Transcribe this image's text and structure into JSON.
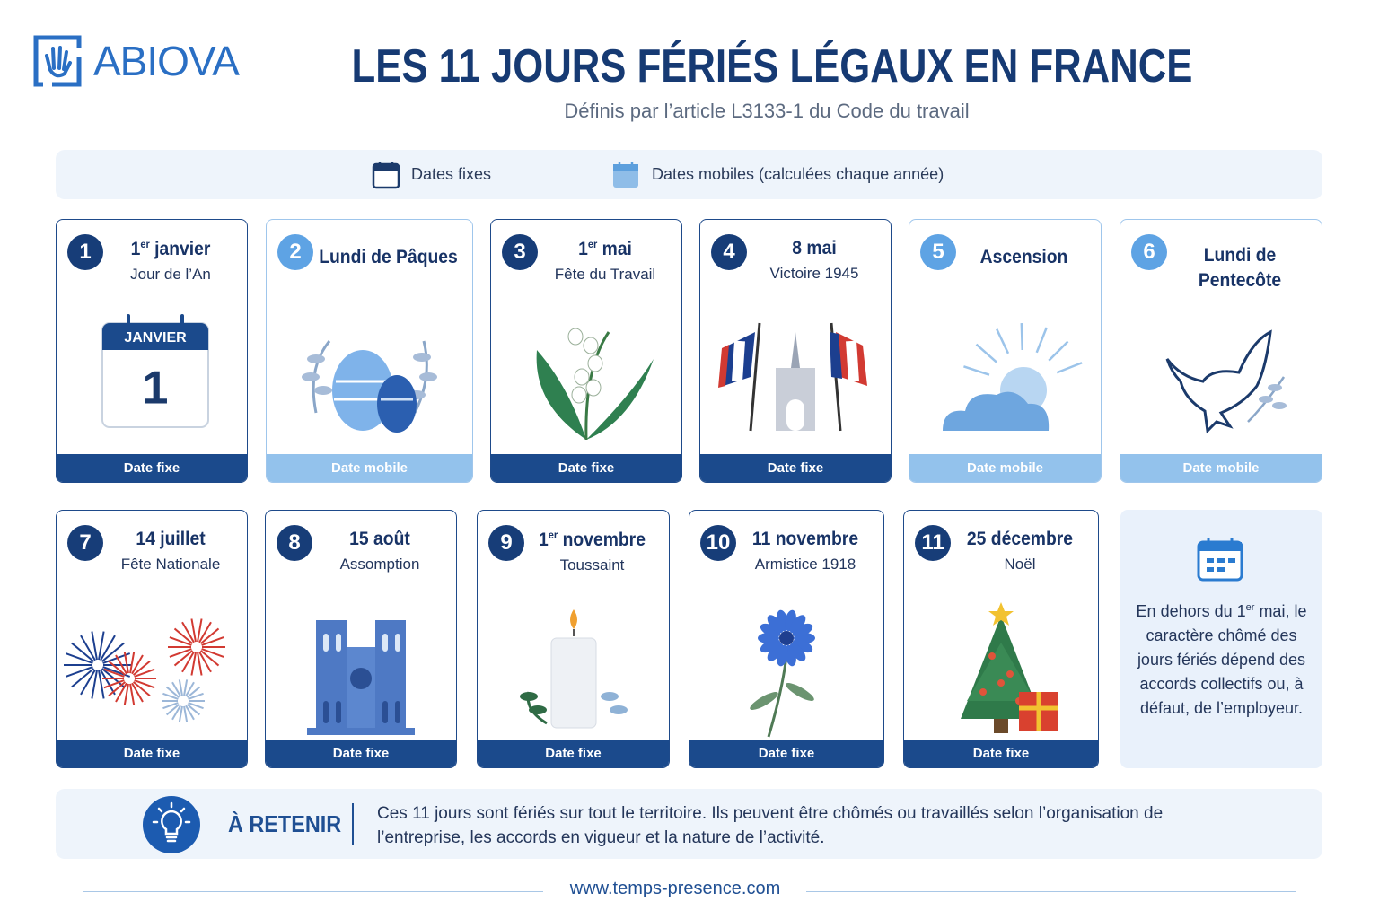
{
  "header": {
    "logo": "ABIOVA",
    "title": "LES 11 JOURS FÉRIÉS LÉGAUX EN FRANCE",
    "subtitle": "Définis par l’article L3133-1 du Code du travail"
  },
  "legend": {
    "fixed": "Dates fixes",
    "mobile": "Dates mobiles (calculées chaque année)"
  },
  "cards": [
    {
      "number": "1",
      "date": "1",
      "date_sup": "er",
      "date_rest": "janvier",
      "name": "Jour de l’An",
      "footer": "Date fixe",
      "color": "#1b4a8c",
      "calendar_month": "JANVIER",
      "calendar_day": "1"
    },
    {
      "number": "2",
      "title": "Lundi de Pâques",
      "footer": "Date mobile",
      "color": "#93c2ec"
    },
    {
      "number": "3",
      "date": "1",
      "date_sup": "er",
      "date_rest": "mai",
      "name": "Fête du Travail",
      "footer": "Date fixe",
      "color": "#1b4a8c"
    },
    {
      "number": "4",
      "date": "8 mai",
      "name": "Victoire 1945",
      "footer": "Date fixe",
      "color": "#1b4a8c"
    },
    {
      "number": "5",
      "title": "Ascension",
      "footer": "Date mobile",
      "color": "#93c2ec"
    },
    {
      "number": "6",
      "title": "Lundi de Pentecôte",
      "footer": "Date mobile",
      "color": "#93c2ec"
    },
    {
      "number": "7",
      "date": "14 juillet",
      "name": "Fête Nationale",
      "footer": "Date fixe",
      "color": "#1b4a8c"
    },
    {
      "number": "8",
      "date": "15 août",
      "name": "Assomption",
      "footer": "Date fixe",
      "color": "#1b4a8c"
    },
    {
      "number": "9",
      "date": "1",
      "date_sup": "er",
      "date_rest": "novembre",
      "name": "Toussaint",
      "footer": "Date fixe",
      "color": "#1b4a8c"
    },
    {
      "number": "10",
      "date": "11 novembre",
      "name": "Armistice 1918",
      "footer": "Date fixe",
      "color": "#1b4a8c"
    },
    {
      "number": "11",
      "date": "25 décembre",
      "name": "Noël",
      "footer": "Date fixe",
      "color": "#1b4a8c"
    }
  ],
  "note": {
    "before": "En dehors du 1",
    "sup": "er",
    "after": "mai, le caractère chômé des jours fériés dépend des accords collectifs ou, à défaut, de l’employeur."
  },
  "retenir": {
    "label": "À RETENIR",
    "text": "Ces 11 jours sont fériés sur tout le territoire. Ils peuvent être chômés ou travaillés selon l’organisation de l’entreprise, les accords en vigueur et la nature de l’activité."
  },
  "footer": {
    "url": "www.temps-presence.com"
  }
}
